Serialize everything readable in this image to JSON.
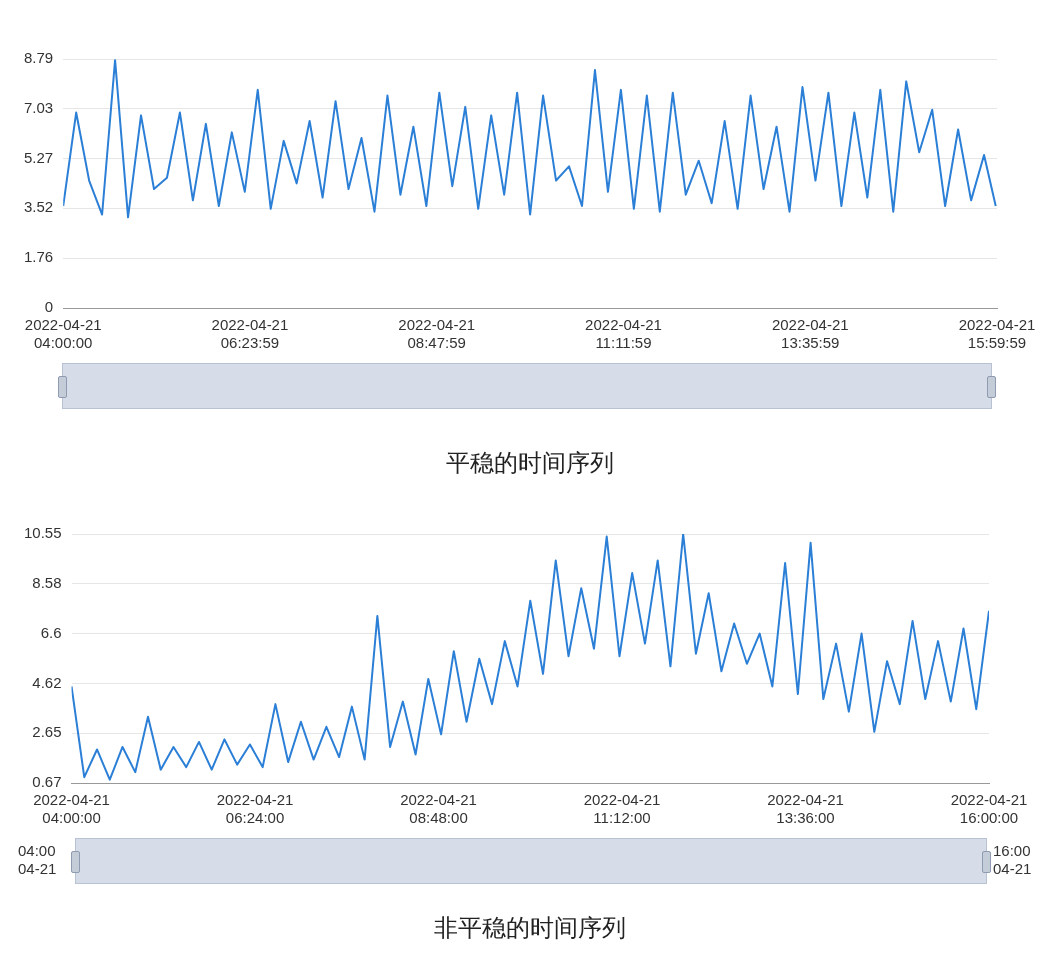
{
  "chart_data": [
    {
      "type": "line",
      "title": "平稳的时间序列",
      "grid": "y",
      "legend": false,
      "marker": "none",
      "line_style": "solid",
      "x": [
        "2022-04-21T04:00",
        "2022-04-21T04:10",
        "2022-04-21T04:20",
        "2022-04-21T04:30",
        "2022-04-21T04:40",
        "2022-04-21T04:50",
        "2022-04-21T05:00",
        "2022-04-21T05:10",
        "2022-04-21T05:20",
        "2022-04-21T05:30",
        "2022-04-21T05:40",
        "2022-04-21T05:50",
        "2022-04-21T06:00",
        "2022-04-21T06:10",
        "2022-04-21T06:20",
        "2022-04-21T06:30",
        "2022-04-21T06:40",
        "2022-04-21T06:50",
        "2022-04-21T07:00",
        "2022-04-21T07:10",
        "2022-04-21T07:20",
        "2022-04-21T07:30",
        "2022-04-21T07:40",
        "2022-04-21T07:50",
        "2022-04-21T08:00",
        "2022-04-21T08:10",
        "2022-04-21T08:20",
        "2022-04-21T08:30",
        "2022-04-21T08:40",
        "2022-04-21T08:50",
        "2022-04-21T09:00",
        "2022-04-21T09:10",
        "2022-04-21T09:20",
        "2022-04-21T09:30",
        "2022-04-21T09:40",
        "2022-04-21T09:50",
        "2022-04-21T10:00",
        "2022-04-21T10:10",
        "2022-04-21T10:20",
        "2022-04-21T10:30",
        "2022-04-21T10:40",
        "2022-04-21T10:50",
        "2022-04-21T11:00",
        "2022-04-21T11:10",
        "2022-04-21T11:20",
        "2022-04-21T11:30",
        "2022-04-21T11:40",
        "2022-04-21T11:50",
        "2022-04-21T12:00",
        "2022-04-21T12:10",
        "2022-04-21T12:20",
        "2022-04-21T12:30",
        "2022-04-21T12:40",
        "2022-04-21T12:50",
        "2022-04-21T13:00",
        "2022-04-21T13:10",
        "2022-04-21T13:20",
        "2022-04-21T13:30",
        "2022-04-21T13:40",
        "2022-04-21T13:50",
        "2022-04-21T14:00",
        "2022-04-21T14:10",
        "2022-04-21T14:20",
        "2022-04-21T14:30",
        "2022-04-21T14:40",
        "2022-04-21T14:50",
        "2022-04-21T15:00",
        "2022-04-21T15:10",
        "2022-04-21T15:20",
        "2022-04-21T15:30",
        "2022-04-21T15:40",
        "2022-04-21T15:50",
        "2022-04-21T15:59"
      ],
      "series": [
        {
          "color": "#2b7fd6",
          "values": [
            3.6,
            6.9,
            4.5,
            3.3,
            8.75,
            3.2,
            6.8,
            4.2,
            4.6,
            6.9,
            3.8,
            6.5,
            3.6,
            6.2,
            4.1,
            7.7,
            3.5,
            5.9,
            4.4,
            6.6,
            3.9,
            7.3,
            4.2,
            6.0,
            3.4,
            7.5,
            4.0,
            6.4,
            3.6,
            7.6,
            4.3,
            7.1,
            3.5,
            6.8,
            4.0,
            7.6,
            3.3,
            7.5,
            4.5,
            5.0,
            3.6,
            8.4,
            4.1,
            7.7,
            3.5,
            7.5,
            3.4,
            7.6,
            4.0,
            5.2,
            3.7,
            6.6,
            3.5,
            7.5,
            4.2,
            6.4,
            3.4,
            7.8,
            4.5,
            7.6,
            3.6,
            6.9,
            3.9,
            7.7,
            3.4,
            8.0,
            5.5,
            7.0,
            3.6,
            6.3,
            3.8,
            5.4,
            3.6
          ]
        }
      ],
      "xlim": [
        "2022-04-21T04:00:00",
        "2022-04-21T15:59:59"
      ],
      "xticks": [
        {
          "value": "2022-04-21T04:00:00",
          "label": "2022-04-21\n04:00:00"
        },
        {
          "value": "2022-04-21T06:23:59",
          "label": "2022-04-21\n06:23:59"
        },
        {
          "value": "2022-04-21T08:47:59",
          "label": "2022-04-21\n08:47:59"
        },
        {
          "value": "2022-04-21T11:11:59",
          "label": "2022-04-21\n11:11:59"
        },
        {
          "value": "2022-04-21T13:35:59",
          "label": "2022-04-21\n13:35:59"
        },
        {
          "value": "2022-04-21T15:59:59",
          "label": "2022-04-21\n15:59:59"
        }
      ],
      "ylim": [
        0,
        8.79
      ],
      "yticks": [
        0,
        1.76,
        3.52,
        5.27,
        7.03,
        8.79
      ]
    },
    {
      "type": "line",
      "title": "非平稳的时间序列",
      "annotations": [
        "04:00\n04-21",
        "16:00\n04-21"
      ],
      "grid": "y",
      "legend": false,
      "marker": "none",
      "line_style": "solid",
      "x": [
        "2022-04-21T04:00",
        "2022-04-21T04:10",
        "2022-04-21T04:20",
        "2022-04-21T04:30",
        "2022-04-21T04:40",
        "2022-04-21T04:50",
        "2022-04-21T05:00",
        "2022-04-21T05:10",
        "2022-04-21T05:20",
        "2022-04-21T05:30",
        "2022-04-21T05:40",
        "2022-04-21T05:50",
        "2022-04-21T06:00",
        "2022-04-21T06:10",
        "2022-04-21T06:20",
        "2022-04-21T06:30",
        "2022-04-21T06:40",
        "2022-04-21T06:50",
        "2022-04-21T07:00",
        "2022-04-21T07:10",
        "2022-04-21T07:20",
        "2022-04-21T07:30",
        "2022-04-21T07:40",
        "2022-04-21T07:50",
        "2022-04-21T08:00",
        "2022-04-21T08:10",
        "2022-04-21T08:20",
        "2022-04-21T08:30",
        "2022-04-21T08:40",
        "2022-04-21T08:50",
        "2022-04-21T09:00",
        "2022-04-21T09:10",
        "2022-04-21T09:20",
        "2022-04-21T09:30",
        "2022-04-21T09:40",
        "2022-04-21T09:50",
        "2022-04-21T10:00",
        "2022-04-21T10:10",
        "2022-04-21T10:20",
        "2022-04-21T10:30",
        "2022-04-21T10:40",
        "2022-04-21T10:50",
        "2022-04-21T11:00",
        "2022-04-21T11:10",
        "2022-04-21T11:20",
        "2022-04-21T11:30",
        "2022-04-21T11:40",
        "2022-04-21T11:50",
        "2022-04-21T12:00",
        "2022-04-21T12:10",
        "2022-04-21T12:20",
        "2022-04-21T12:30",
        "2022-04-21T12:40",
        "2022-04-21T12:50",
        "2022-04-21T13:00",
        "2022-04-21T13:10",
        "2022-04-21T13:20",
        "2022-04-21T13:30",
        "2022-04-21T13:40",
        "2022-04-21T13:50",
        "2022-04-21T14:00",
        "2022-04-21T14:10",
        "2022-04-21T14:20",
        "2022-04-21T14:30",
        "2022-04-21T14:40",
        "2022-04-21T14:50",
        "2022-04-21T15:00",
        "2022-04-21T15:10",
        "2022-04-21T15:20",
        "2022-04-21T15:30",
        "2022-04-21T15:40",
        "2022-04-21T15:50",
        "2022-04-21T16:00"
      ],
      "series": [
        {
          "color": "#2b7fd6",
          "values": [
            4.5,
            0.9,
            2.0,
            0.8,
            2.1,
            1.1,
            3.3,
            1.2,
            2.1,
            1.3,
            2.3,
            1.2,
            2.4,
            1.4,
            2.2,
            1.3,
            3.8,
            1.5,
            3.1,
            1.6,
            2.9,
            1.7,
            3.7,
            1.6,
            7.3,
            2.1,
            3.9,
            1.8,
            4.8,
            2.6,
            5.9,
            3.1,
            5.6,
            3.8,
            6.3,
            4.5,
            7.9,
            5.0,
            9.5,
            5.7,
            8.4,
            6.0,
            10.45,
            5.7,
            9.0,
            6.2,
            9.5,
            5.3,
            10.55,
            5.8,
            8.2,
            5.1,
            7.0,
            5.4,
            6.6,
            4.5,
            9.4,
            4.2,
            10.2,
            4.0,
            6.2,
            3.5,
            6.6,
            2.7,
            5.5,
            3.8,
            7.1,
            4.0,
            6.3,
            3.9,
            6.8,
            3.6,
            7.5
          ]
        }
      ],
      "xlim": [
        "2022-04-21T04:00",
        "2022-04-21T16:00"
      ],
      "xticks": [
        {
          "value": "2022-04-21T04:00",
          "label": "2022-04-21\n04:00:00"
        },
        {
          "value": "2022-04-21T06:24",
          "label": "2022-04-21\n06:24:00"
        },
        {
          "value": "2022-04-21T08:48",
          "label": "2022-04-21\n08:48:00"
        },
        {
          "value": "2022-04-21T11:12",
          "label": "2022-04-21\n11:12:00"
        },
        {
          "value": "2022-04-21T13:36",
          "label": "2022-04-21\n13:36:00"
        },
        {
          "value": "2022-04-21T16:00",
          "label": "2022-04-21\n16:00:00"
        }
      ],
      "ylim": [
        0.67,
        10.55
      ],
      "yticks": [
        0.67,
        2.65,
        4.62,
        6.6,
        8.58,
        10.55
      ]
    }
  ]
}
